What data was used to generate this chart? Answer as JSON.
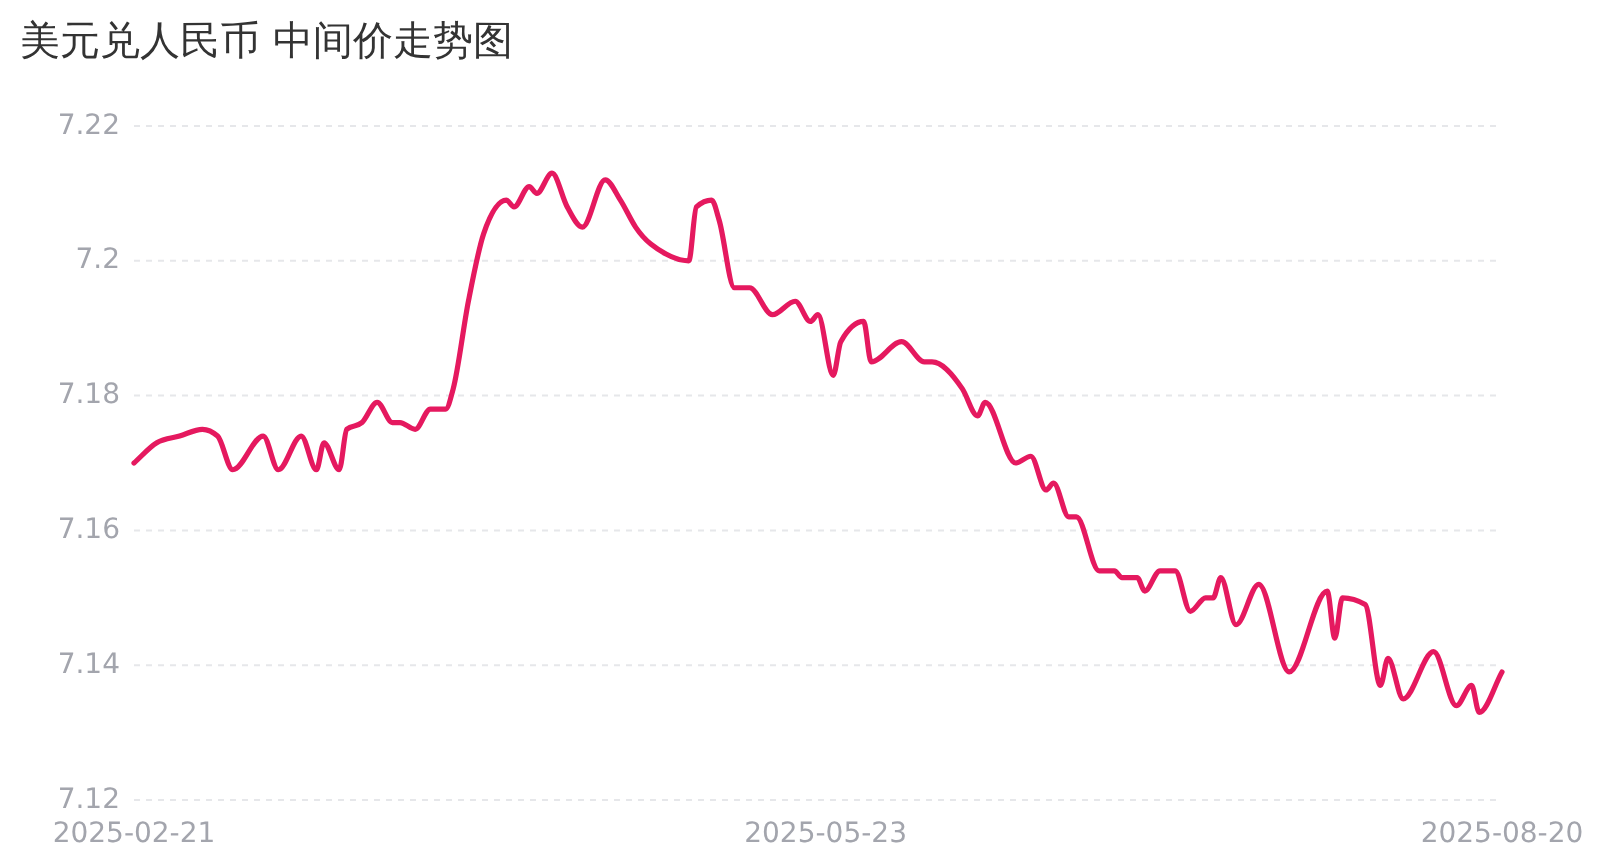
{
  "chart_data": {
    "type": "line",
    "title": "美元兑人民币 中间价走势图",
    "x": [
      "2025-02-21",
      "2025-02-24",
      "2025-02-27",
      "2025-03-02",
      "2025-03-04",
      "2025-03-06",
      "2025-03-10",
      "2025-03-12",
      "2025-03-15",
      "2025-03-17",
      "2025-03-18",
      "2025-03-20",
      "2025-03-21",
      "2025-03-23",
      "2025-03-25",
      "2025-03-27",
      "2025-03-28",
      "2025-03-30",
      "2025-04-01",
      "2025-04-03",
      "2025-04-04",
      "2025-04-06",
      "2025-04-08",
      "2025-04-11",
      "2025-04-12",
      "2025-04-14",
      "2025-04-15",
      "2025-04-17",
      "2025-04-19",
      "2025-04-21",
      "2025-04-24",
      "2025-04-26",
      "2025-04-28",
      "2025-05-02",
      "2025-05-05",
      "2025-05-06",
      "2025-05-08",
      "2025-05-09",
      "2025-05-11",
      "2025-05-13",
      "2025-05-16",
      "2025-05-19",
      "2025-05-21",
      "2025-05-22",
      "2025-05-24",
      "2025-05-25",
      "2025-05-28",
      "2025-05-29",
      "2025-06-02",
      "2025-06-05",
      "2025-06-06",
      "2025-06-10",
      "2025-06-12",
      "2025-06-13",
      "2025-06-17",
      "2025-06-19",
      "2025-06-21",
      "2025-06-22",
      "2025-06-24",
      "2025-06-25",
      "2025-06-28",
      "2025-06-30",
      "2025-07-01",
      "2025-07-03",
      "2025-07-04",
      "2025-07-06",
      "2025-07-08",
      "2025-07-10",
      "2025-07-12",
      "2025-07-13",
      "2025-07-14",
      "2025-07-16",
      "2025-07-19",
      "2025-07-23",
      "2025-07-28",
      "2025-07-29",
      "2025-07-30",
      "2025-08-02",
      "2025-08-04",
      "2025-08-05",
      "2025-08-07",
      "2025-08-11",
      "2025-08-14",
      "2025-08-16",
      "2025-08-17",
      "2025-08-20"
    ],
    "series": [
      {
        "color": "#e5195f",
        "values": [
          7.17,
          7.173,
          7.174,
          7.175,
          7.174,
          7.169,
          7.174,
          7.169,
          7.174,
          7.169,
          7.173,
          7.169,
          7.175,
          7.176,
          7.179,
          7.176,
          7.176,
          7.175,
          7.178,
          7.178,
          7.181,
          7.194,
          7.204,
          7.209,
          7.208,
          7.211,
          7.21,
          7.213,
          7.208,
          7.205,
          7.212,
          7.209,
          7.205,
          7.201,
          7.2,
          7.208,
          7.209,
          7.206,
          7.196,
          7.196,
          7.192,
          7.194,
          7.191,
          7.192,
          7.183,
          7.188,
          7.191,
          7.185,
          7.188,
          7.185,
          7.185,
          7.181,
          7.177,
          7.179,
          7.17,
          7.171,
          7.166,
          7.167,
          7.162,
          7.162,
          7.154,
          7.154,
          7.153,
          7.153,
          7.151,
          7.154,
          7.154,
          7.148,
          7.15,
          7.15,
          7.153,
          7.146,
          7.152,
          7.139,
          7.151,
          7.144,
          7.15,
          7.149,
          7.137,
          7.141,
          7.135,
          7.142,
          7.134,
          7.137,
          7.133,
          7.139
        ]
      }
    ],
    "xlim": [
      "2025-02-21",
      "2025-08-20"
    ],
    "xticks": [
      "2025-02-21",
      "2025-05-23",
      "2025-08-20"
    ],
    "ylim": [
      7.12,
      7.22
    ],
    "yticks": [
      7.12,
      7.14,
      7.16,
      7.18,
      7.2,
      7.22
    ],
    "grid": "y"
  }
}
